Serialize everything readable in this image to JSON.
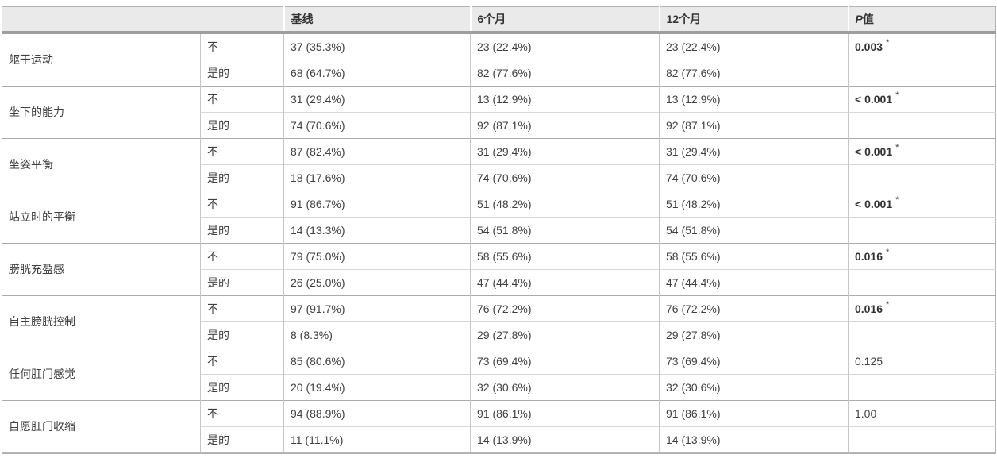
{
  "table": {
    "header": {
      "spacer": "",
      "cols": [
        "基线",
        "6个月",
        "12个月"
      ],
      "p_col": {
        "italic_part": "P",
        "normal_part": "值"
      }
    },
    "answer_labels": {
      "no": "不",
      "yes": "是的"
    },
    "colors": {
      "header_bg": "#eaeaea",
      "header_text": "#333333",
      "header_rule": "#9e9e9e",
      "outer_border": "#b3b3b3",
      "group_line": "#ababab",
      "inner_line": "#d6d6d6",
      "vertical_line": "#c6c6c6",
      "text": "#404040"
    }
  },
  "chart_data": {
    "type": "table",
    "columns": [
      "",
      "",
      "基线",
      "6个月",
      "12个月",
      "P值"
    ],
    "groups": [
      {
        "item": "躯干运动",
        "rows": [
          {
            "answer": "不",
            "values": [
              "37 (35.3%)",
              "23 (22.4%)",
              "23 (22.4%)"
            ]
          },
          {
            "answer": "是的",
            "values": [
              "68 (64.7%)",
              "82 (77.6%)",
              "82 (77.6%)"
            ]
          }
        ],
        "p_value": "0.003",
        "significant": true
      },
      {
        "item": "坐下的能力",
        "rows": [
          {
            "answer": "不",
            "values": [
              "31 (29.4%)",
              "13 (12.9%)",
              "13 (12.9%)"
            ]
          },
          {
            "answer": "是的",
            "values": [
              "74 (70.6%)",
              "92 (87.1%)",
              "92 (87.1%)"
            ]
          }
        ],
        "p_value": "< 0.001",
        "significant": true
      },
      {
        "item": "坐姿平衡",
        "rows": [
          {
            "answer": "不",
            "values": [
              "87 (82.4%)",
              "31 (29.4%)",
              "31 (29.4%)"
            ]
          },
          {
            "answer": "是的",
            "values": [
              "18 (17.6%)",
              "74 (70.6%)",
              "74 (70.6%)"
            ]
          }
        ],
        "p_value": "< 0.001",
        "significant": true
      },
      {
        "item": "站立时的平衡",
        "rows": [
          {
            "answer": "不",
            "values": [
              "91 (86.7%)",
              "51 (48.2%)",
              "51 (48.2%)"
            ]
          },
          {
            "answer": "是的",
            "values": [
              "14 (13.3%)",
              "54 (51.8%)",
              "54 (51.8%)"
            ]
          }
        ],
        "p_value": "< 0.001",
        "significant": true
      },
      {
        "item": "膀胱充盈感",
        "rows": [
          {
            "answer": "不",
            "values": [
              "79 (75.0%)",
              "58 (55.6%)",
              "58 (55.6%)"
            ]
          },
          {
            "answer": "是的",
            "values": [
              "26 (25.0%)",
              "47 (44.4%)",
              "47 (44.4%)"
            ]
          }
        ],
        "p_value": "0.016",
        "significant": true
      },
      {
        "item": "自主膀胱控制",
        "rows": [
          {
            "answer": "不",
            "values": [
              "97 (91.7%)",
              "76 (72.2%)",
              "76 (72.2%)"
            ]
          },
          {
            "answer": "是的",
            "values": [
              "8 (8.3%)",
              "29 (27.8%)",
              "29 (27.8%)"
            ]
          }
        ],
        "p_value": "0.016",
        "significant": true
      },
      {
        "item": "任何肛门感觉",
        "rows": [
          {
            "answer": "不",
            "values": [
              "85 (80.6%)",
              "73 (69.4%)",
              "73 (69.4%)"
            ]
          },
          {
            "answer": "是的",
            "values": [
              "20 (19.4%)",
              "32 (30.6%)",
              "32 (30.6%)"
            ]
          }
        ],
        "p_value": "0.125",
        "significant": false
      },
      {
        "item": "自愿肛门收缩",
        "rows": [
          {
            "answer": "不",
            "values": [
              "94 (88.9%)",
              "91 (86.1%)",
              "91 (86.1%)"
            ]
          },
          {
            "answer": "是的",
            "values": [
              "11 (11.1%)",
              "14 (13.9%)",
              "14 (13.9%)"
            ]
          }
        ],
        "p_value": "1.00",
        "significant": false
      }
    ]
  }
}
